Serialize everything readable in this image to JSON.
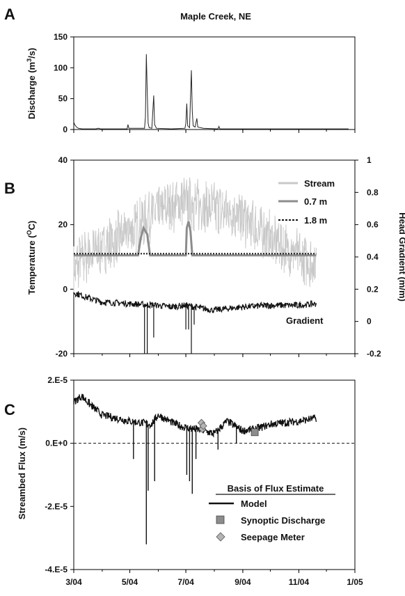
{
  "figure": {
    "panels": [
      "A",
      "B",
      "C"
    ],
    "title": "Maple Creek, NE"
  },
  "x_axis": {
    "type": "date",
    "range": [
      "2004-03-01",
      "2005-01-01"
    ],
    "ticks": [
      {
        "date": "2004-03-01",
        "label": "3/04"
      },
      {
        "date": "2004-05-01",
        "label": "5/04"
      },
      {
        "date": "2004-07-01",
        "label": "7/04"
      },
      {
        "date": "2004-09-01",
        "label": "9/04"
      },
      {
        "date": "2004-11-01",
        "label": "11/04"
      },
      {
        "date": "2005-01-01",
        "label": "1/05"
      }
    ]
  },
  "chart_data": [
    {
      "panel": "A",
      "type": "line",
      "title": "Maple Creek, NE",
      "ylabel": "Discharge (m",
      "ylabel_sup": "3",
      "ylabel_tail": "/s)",
      "ylim": [
        0,
        150
      ],
      "yticks": [
        0,
        50,
        100,
        150
      ],
      "grid": false,
      "series": [
        {
          "name": "",
          "color": "#222222",
          "points": [
            [
              "2004-03-01",
              12
            ],
            [
              "2004-03-02",
              8
            ],
            [
              "2004-03-04",
              4
            ],
            [
              "2004-03-06",
              2
            ],
            [
              "2004-03-10",
              1
            ],
            [
              "2004-03-25",
              1
            ],
            [
              "2004-03-28",
              2
            ],
            [
              "2004-03-30",
              1
            ],
            [
              "2004-04-15",
              1
            ],
            [
              "2004-04-28",
              1
            ],
            [
              "2004-04-29",
              8
            ],
            [
              "2004-04-30",
              2
            ],
            [
              "2004-05-10",
              2
            ],
            [
              "2004-05-17",
              2
            ],
            [
              "2004-05-18",
              20
            ],
            [
              "2004-05-19",
              122
            ],
            [
              "2004-05-20",
              60
            ],
            [
              "2004-05-21",
              10
            ],
            [
              "2004-05-22",
              3
            ],
            [
              "2004-05-25",
              2
            ],
            [
              "2004-05-27",
              55
            ],
            [
              "2004-05-28",
              8
            ],
            [
              "2004-05-30",
              2
            ],
            [
              "2004-06-15",
              1
            ],
            [
              "2004-06-30",
              2
            ],
            [
              "2004-07-01",
              10
            ],
            [
              "2004-07-02",
              42
            ],
            [
              "2004-07-03",
              6
            ],
            [
              "2004-07-05",
              3
            ],
            [
              "2004-07-07",
              96
            ],
            [
              "2004-07-08",
              30
            ],
            [
              "2004-07-09",
              6
            ],
            [
              "2004-07-11",
              4
            ],
            [
              "2004-07-13",
              18
            ],
            [
              "2004-07-14",
              4
            ],
            [
              "2004-07-20",
              2
            ],
            [
              "2004-08-05",
              1
            ],
            [
              "2004-08-06",
              5
            ],
            [
              "2004-08-07",
              1
            ],
            [
              "2004-09-01",
              1
            ],
            [
              "2004-10-01",
              1
            ],
            [
              "2004-11-01",
              1
            ],
            [
              "2004-11-25",
              1
            ],
            [
              "2004-12-25",
              1
            ]
          ]
        }
      ]
    },
    {
      "panel": "B",
      "type": "line",
      "ylabel_left": "Temperature (",
      "ylabel_left_sup": "O",
      "ylabel_left_tail": "C)",
      "ylim_left": [
        -20,
        40
      ],
      "yticks_left": [
        -20,
        0,
        20,
        40
      ],
      "ylabel_right": "Head Gradient (m/m)",
      "ylim_right": [
        -0.2,
        1
      ],
      "yticks_right": [
        -0.2,
        0,
        0.2,
        0.4,
        0.6,
        0.8,
        1
      ],
      "grid": false,
      "legend_position": "top-right",
      "series": [
        {
          "name": "Stream",
          "axis": "left",
          "color": "#c8c8c8",
          "style": "solid-noisy",
          "daily_range_C": 7,
          "trend": [
            [
              "2004-03-01",
              6
            ],
            [
              "2004-03-10",
              9
            ],
            [
              "2004-04-01",
              13
            ],
            [
              "2004-04-15",
              15
            ],
            [
              "2004-05-01",
              18
            ],
            [
              "2004-05-15",
              21
            ],
            [
              "2004-06-01",
              24
            ],
            [
              "2004-06-20",
              26
            ],
            [
              "2004-07-01",
              27
            ],
            [
              "2004-07-20",
              26
            ],
            [
              "2004-08-01",
              25
            ],
            [
              "2004-08-20",
              24
            ],
            [
              "2004-09-01",
              22
            ],
            [
              "2004-09-20",
              18
            ],
            [
              "2004-10-01",
              16
            ],
            [
              "2004-10-15",
              13
            ],
            [
              "2004-11-01",
              10
            ],
            [
              "2004-11-20",
              8
            ]
          ]
        },
        {
          "name": "0.7 m",
          "axis": "left",
          "color": "#8c8c8c",
          "style": "solid",
          "points": [
            [
              "2004-03-01",
              10.5
            ],
            [
              "2004-05-10",
              10.5
            ],
            [
              "2004-05-13",
              16
            ],
            [
              "2004-05-16",
              19
            ],
            [
              "2004-05-20",
              17
            ],
            [
              "2004-05-23",
              10.5
            ],
            [
              "2004-07-01",
              10.5
            ],
            [
              "2004-07-02",
              19
            ],
            [
              "2004-07-04",
              21
            ],
            [
              "2004-07-06",
              18
            ],
            [
              "2004-07-08",
              10.5
            ],
            [
              "2004-11-20",
              10.5
            ]
          ]
        },
        {
          "name": "1.8 m",
          "axis": "left",
          "color": "#111111",
          "style": "dotted",
          "points": [
            [
              "2004-03-01",
              11
            ],
            [
              "2004-11-20",
              11
            ]
          ]
        },
        {
          "name": "Gradient",
          "axis": "right",
          "color": "#111111",
          "style": "solid-noisy",
          "trend": [
            [
              "2004-03-01",
              0.18
            ],
            [
              "2004-03-15",
              0.15
            ],
            [
              "2004-04-01",
              0.12
            ],
            [
              "2004-05-01",
              0.11
            ],
            [
              "2004-06-01",
              0.1
            ],
            [
              "2004-06-15",
              0.09
            ],
            [
              "2004-07-01",
              0.1
            ],
            [
              "2004-07-20",
              0.08
            ],
            [
              "2004-08-01",
              0.07
            ],
            [
              "2004-09-01",
              0.09
            ],
            [
              "2004-10-01",
              0.1
            ],
            [
              "2004-11-01",
              0.1
            ],
            [
              "2004-11-20",
              0.11
            ]
          ],
          "dips": [
            [
              "2004-05-17",
              -0.2
            ],
            [
              "2004-05-20",
              -0.2
            ],
            [
              "2004-05-27",
              -0.1
            ],
            [
              "2004-07-01",
              -0.05
            ],
            [
              "2004-07-04",
              -0.05
            ],
            [
              "2004-07-07",
              -0.2
            ],
            [
              "2004-07-10",
              -0.02
            ]
          ]
        }
      ]
    },
    {
      "panel": "C",
      "type": "line",
      "ylabel": "Streambed Flux (m/s)",
      "ylim": [
        -4e-05,
        2e-05
      ],
      "yticks": [
        {
          "value": 2e-05,
          "label": "2.E-5"
        },
        {
          "value": 0,
          "label": "0.E+0"
        },
        {
          "value": -2e-05,
          "label": "-2.E-5"
        },
        {
          "value": -4e-05,
          "label": "-4.E-5"
        }
      ],
      "grid": false,
      "reference_line": {
        "y": 0,
        "style": "dashed"
      },
      "legend_title": "Basis of Flux Estimate",
      "legend_position": "bottom-right",
      "series": [
        {
          "name": "Model",
          "color": "#111111",
          "marker": "line",
          "trend": [
            [
              "2004-03-01",
              1.3e-05
            ],
            [
              "2004-03-10",
              1.5e-05
            ],
            [
              "2004-03-20",
              1.2e-05
            ],
            [
              "2004-04-01",
              9e-06
            ],
            [
              "2004-05-01",
              7e-06
            ],
            [
              "2004-05-25",
              6e-06
            ],
            [
              "2004-06-01",
              9e-06
            ],
            [
              "2004-06-20",
              6e-06
            ],
            [
              "2004-07-01",
              5e-06
            ],
            [
              "2004-07-20",
              4e-06
            ],
            [
              "2004-08-01",
              3e-06
            ],
            [
              "2004-08-15",
              7e-06
            ],
            [
              "2004-09-01",
              4e-06
            ],
            [
              "2004-09-15",
              4.5e-06
            ],
            [
              "2004-10-01",
              6e-06
            ],
            [
              "2004-11-01",
              7e-06
            ],
            [
              "2004-11-20",
              8e-06
            ]
          ],
          "dips": [
            [
              "2004-05-05",
              -5e-06
            ],
            [
              "2004-05-19",
              -3.2e-05
            ],
            [
              "2004-05-21",
              -1.5e-05
            ],
            [
              "2004-05-28",
              -1.2e-05
            ],
            [
              "2004-07-02",
              -1e-05
            ],
            [
              "2004-07-05",
              -1.2e-05
            ],
            [
              "2004-07-08",
              -1.6e-05
            ],
            [
              "2004-07-12",
              -5e-06
            ],
            [
              "2004-08-05",
              -2e-06
            ],
            [
              "2004-08-25",
              0
            ]
          ]
        },
        {
          "name": "Synoptic Discharge",
          "color": "#8c8c8c",
          "marker": "square",
          "points": [
            [
              "2004-09-14",
              3.5e-06
            ]
          ]
        },
        {
          "name": "Seepage Meter",
          "color": "#b4b4b4",
          "marker": "diamond",
          "points": [
            [
              "2004-07-18",
              6.5e-06
            ],
            [
              "2004-07-19",
              4.5e-06
            ],
            [
              "2004-07-20",
              5.5e-06
            ]
          ]
        }
      ]
    }
  ]
}
